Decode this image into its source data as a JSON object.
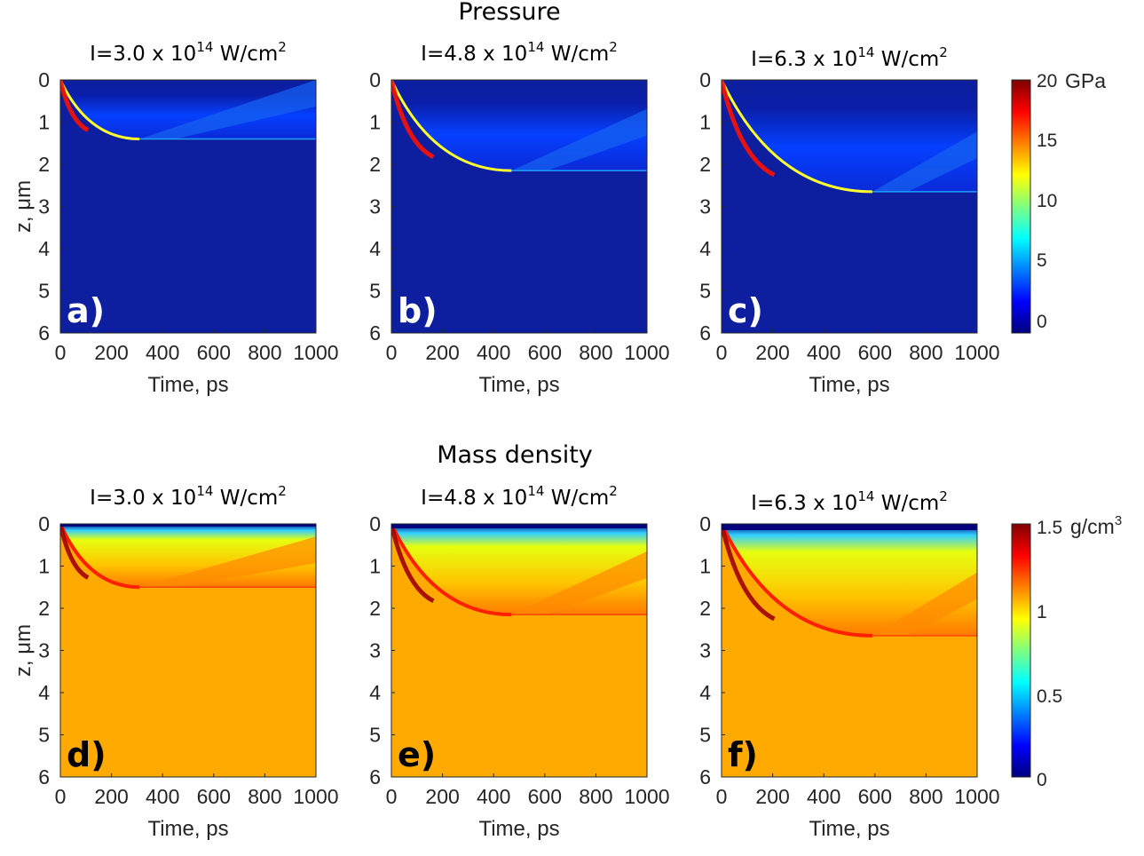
{
  "figure_rows": [
    {
      "heading": "Pressure",
      "colorbar_unit": "GPa",
      "colorbar_ticks": [
        "0",
        "5",
        "10",
        "15",
        "20"
      ]
    },
    {
      "heading": "Mass density",
      "colorbar_unit": "g/cm",
      "colorbar_unit_sup": "3",
      "colorbar_ticks": [
        "0",
        "0.5",
        "1",
        "1.5"
      ]
    }
  ],
  "panel_titles": [
    {
      "prefix": "I=3.0 x 10",
      "exp": "14",
      "unit": " W/cm",
      "unit_exp": "2"
    },
    {
      "prefix": "I=4.8 x 10",
      "exp": "14",
      "unit": " W/cm",
      "unit_exp": "2"
    },
    {
      "prefix": "I=6.3 x 10",
      "exp": "14",
      "unit": " W/cm",
      "unit_exp": "2"
    }
  ],
  "panel_letters": [
    "a)",
    "b)",
    "c)",
    "d)",
    "e)",
    "f)"
  ],
  "axes": {
    "xlabel": "Time, ps",
    "ylabel": "z, μm",
    "xticks": [
      "0",
      "200",
      "400",
      "600",
      "800",
      "1000"
    ],
    "yticks": [
      "0",
      "1",
      "2",
      "3",
      "4",
      "5",
      "6"
    ]
  },
  "colors": {
    "pressure_background": "#0d1f9e",
    "density_background": "#ffaa00",
    "jet_dark_red": "#7f0000",
    "jet_red": "#ff0000",
    "jet_yellow": "#ffff00",
    "jet_cyan": "#00ffff",
    "jet_blue": "#0000ff",
    "jet_dark_blue": "#00007f"
  },
  "chart_data": [
    {
      "type": "heatmap",
      "quantity": "Pressure",
      "units": "GPa",
      "title": "I=3.0 x 10^14 W/cm^2",
      "label": "a)",
      "xlabel": "Time, ps",
      "ylabel": "z, μm",
      "xlim": [
        0,
        1000
      ],
      "ylim": [
        6,
        0
      ],
      "clim": [
        0,
        20
      ],
      "shock_front_end": {
        "time_ps": 310,
        "z_um": 1.4
      }
    },
    {
      "type": "heatmap",
      "quantity": "Pressure",
      "units": "GPa",
      "title": "I=4.8 x 10^14 W/cm^2",
      "label": "b)",
      "xlabel": "Time, ps",
      "ylabel": "z, μm",
      "xlim": [
        0,
        1000
      ],
      "ylim": [
        6,
        0
      ],
      "clim": [
        0,
        20
      ],
      "shock_front_end": {
        "time_ps": 470,
        "z_um": 2.15
      }
    },
    {
      "type": "heatmap",
      "quantity": "Pressure",
      "units": "GPa",
      "title": "I=6.3 x 10^14 W/cm^2",
      "label": "c)",
      "xlabel": "Time, ps",
      "ylabel": "z, μm",
      "xlim": [
        0,
        1000
      ],
      "ylim": [
        6,
        0
      ],
      "clim": [
        0,
        20
      ],
      "shock_front_end": {
        "time_ps": 590,
        "z_um": 2.65
      }
    },
    {
      "type": "heatmap",
      "quantity": "Mass density",
      "units": "g/cm^3",
      "title": "I=3.0 x 10^14 W/cm^2",
      "label": "d)",
      "xlabel": "Time, ps",
      "ylabel": "z, μm",
      "xlim": [
        0,
        1000
      ],
      "ylim": [
        6,
        0
      ],
      "clim": [
        0,
        1.5
      ],
      "shock_front_end": {
        "time_ps": 310,
        "z_um": 1.5
      }
    },
    {
      "type": "heatmap",
      "quantity": "Mass density",
      "units": "g/cm^3",
      "title": "I=4.8 x 10^14 W/cm^2",
      "label": "e)",
      "xlabel": "Time, ps",
      "ylabel": "z, μm",
      "xlim": [
        0,
        1000
      ],
      "ylim": [
        6,
        0
      ],
      "clim": [
        0,
        1.5
      ],
      "shock_front_end": {
        "time_ps": 470,
        "z_um": 2.15
      }
    },
    {
      "type": "heatmap",
      "quantity": "Mass density",
      "units": "g/cm^3",
      "title": "I=6.3 x 10^14 W/cm^2",
      "label": "f)",
      "xlabel": "Time, ps",
      "ylabel": "z, μm",
      "xlim": [
        0,
        1000
      ],
      "ylim": [
        6,
        0
      ],
      "clim": [
        0,
        1.5
      ],
      "shock_front_end": {
        "time_ps": 590,
        "z_um": 2.65
      }
    }
  ]
}
